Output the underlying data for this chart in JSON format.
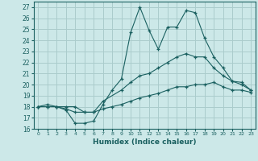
{
  "xlabel": "Humidex (Indice chaleur)",
  "background_color": "#cce8e8",
  "grid_color": "#aacccc",
  "line_color": "#1a6060",
  "xlim": [
    -0.5,
    23.5
  ],
  "ylim": [
    16,
    27.5
  ],
  "xticks": [
    0,
    1,
    2,
    3,
    4,
    5,
    6,
    7,
    8,
    9,
    10,
    11,
    12,
    13,
    14,
    15,
    16,
    17,
    18,
    19,
    20,
    21,
    22,
    23
  ],
  "yticks": [
    16,
    17,
    18,
    19,
    20,
    21,
    22,
    23,
    24,
    25,
    26,
    27
  ],
  "line1": {
    "x": [
      0,
      1,
      2,
      3,
      4,
      5,
      6,
      7,
      8,
      9,
      10,
      11,
      12,
      13,
      14,
      15,
      16,
      17,
      18,
      19,
      20,
      21,
      22,
      23
    ],
    "y": [
      18,
      18.2,
      18,
      17.7,
      16.5,
      16.5,
      16.7,
      18.2,
      19.5,
      20.5,
      24.7,
      27.0,
      24.9,
      23.2,
      25.2,
      25.2,
      26.7,
      26.5,
      24.2,
      22.5,
      21.5,
      20.3,
      20.2,
      19.5
    ]
  },
  "line2": {
    "x": [
      0,
      1,
      2,
      3,
      4,
      5,
      6,
      7,
      9,
      10,
      11,
      12,
      13,
      14,
      15,
      16,
      17,
      18,
      19,
      20,
      21,
      22,
      23
    ],
    "y": [
      18,
      18,
      18,
      18,
      18.0,
      17.5,
      17.5,
      18.5,
      19.5,
      20.2,
      20.8,
      21.0,
      21.5,
      22.0,
      22.5,
      22.8,
      22.5,
      22.5,
      21.5,
      20.8,
      20.3,
      20.0,
      19.5
    ]
  },
  "line3": {
    "x": [
      0,
      1,
      2,
      3,
      4,
      5,
      6,
      7,
      8,
      9,
      10,
      11,
      12,
      13,
      14,
      15,
      16,
      17,
      18,
      19,
      20,
      21,
      22,
      23
    ],
    "y": [
      18,
      18,
      18,
      17.8,
      17.5,
      17.5,
      17.5,
      17.8,
      18.0,
      18.2,
      18.5,
      18.8,
      19.0,
      19.2,
      19.5,
      19.8,
      19.8,
      20.0,
      20.0,
      20.2,
      19.8,
      19.5,
      19.5,
      19.3
    ]
  }
}
